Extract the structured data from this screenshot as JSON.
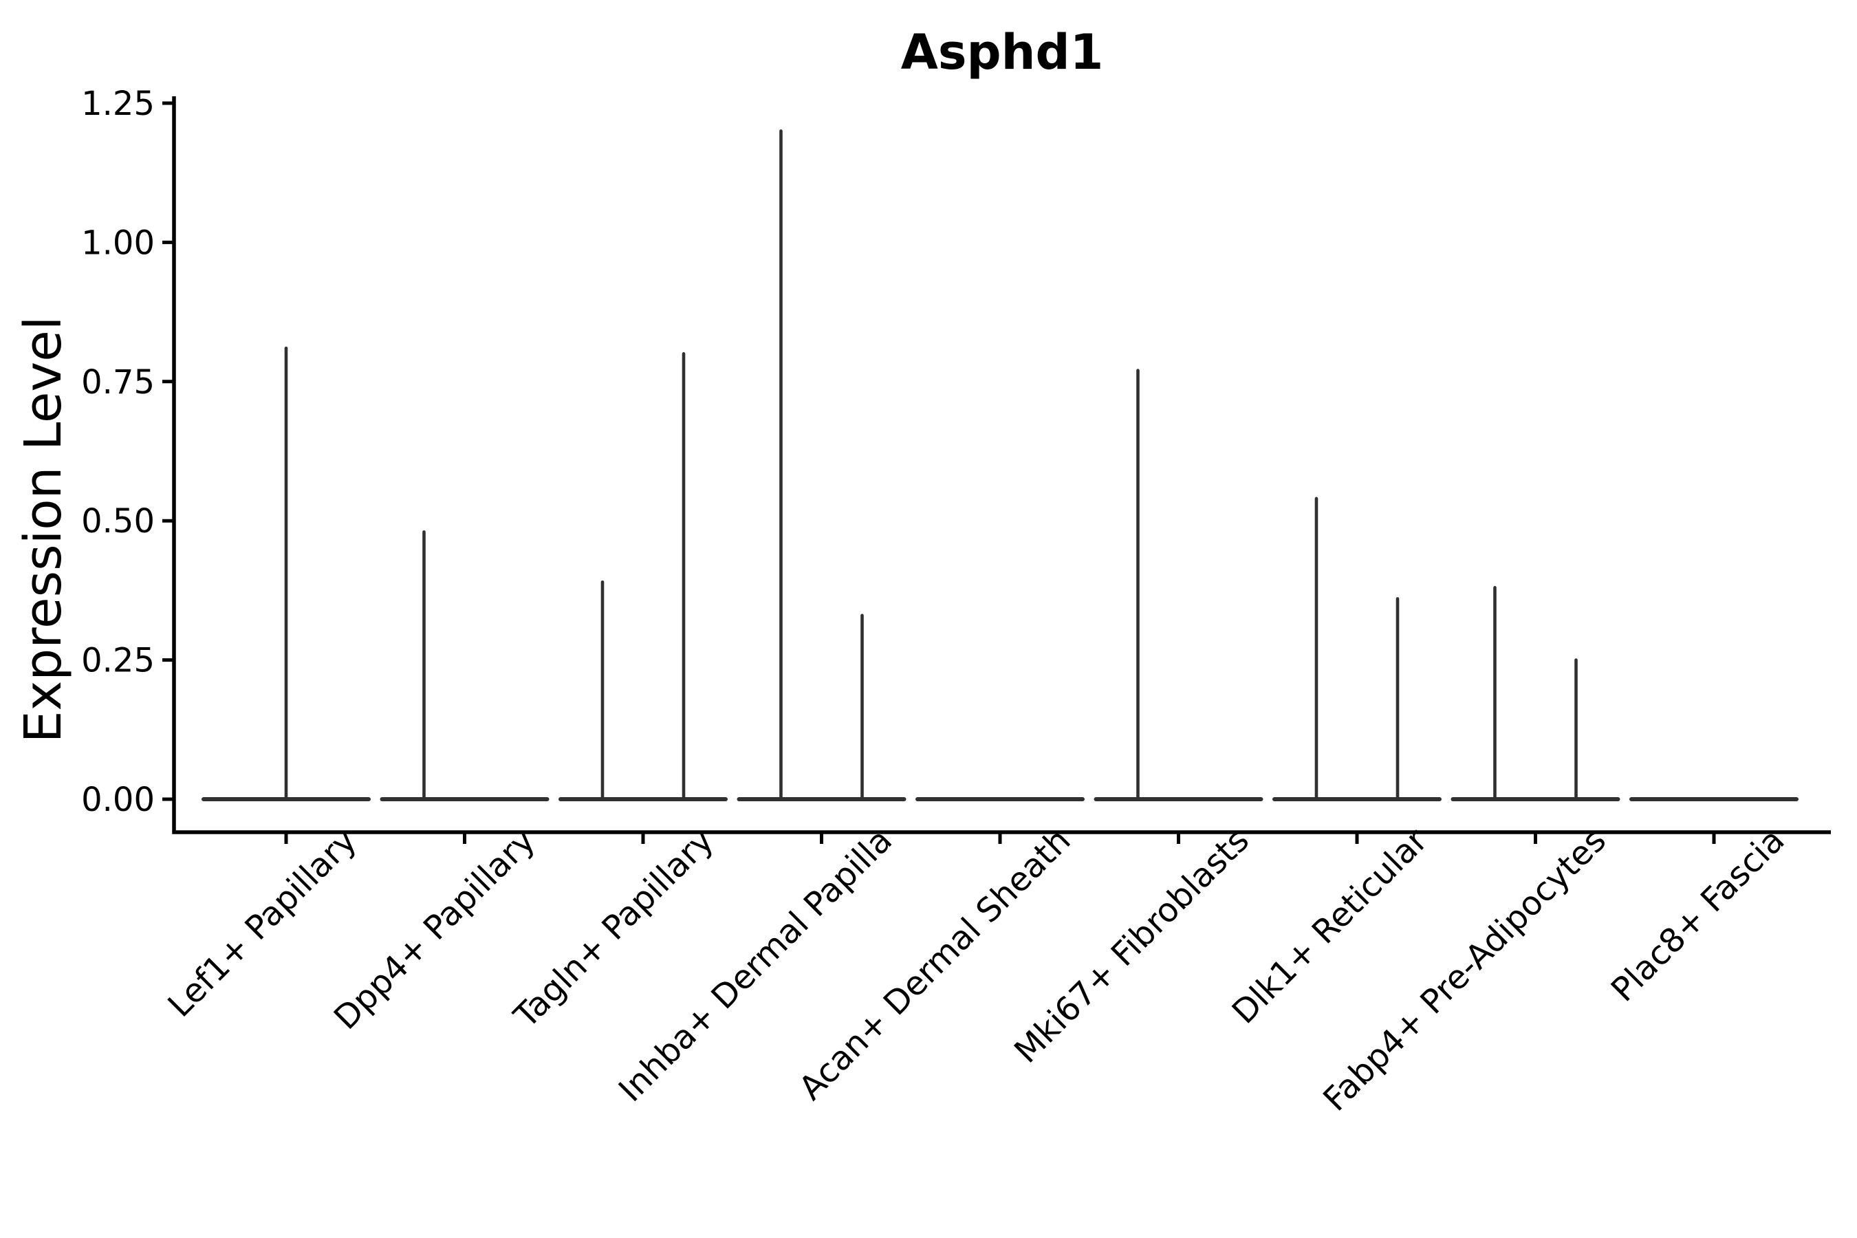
{
  "figure": {
    "background": "#ffffff"
  },
  "chart_data": {
    "type": "violin",
    "title": "Asphd1",
    "ylabel": "Expression Level",
    "xlabel": "",
    "grid": false,
    "legend": "none",
    "x_tick_rotation": 45,
    "ylim": [
      -0.06,
      1.26
    ],
    "yticks": [
      {
        "value": 0.0,
        "label": "0.00"
      },
      {
        "value": 0.25,
        "label": "0.25"
      },
      {
        "value": 0.5,
        "label": "0.50"
      },
      {
        "value": 0.75,
        "label": "0.75"
      },
      {
        "value": 1.0,
        "label": "1.00"
      },
      {
        "value": 1.25,
        "label": "1.25"
      }
    ],
    "categories": [
      "Lef1+ Papillary",
      "Dpp4+ Papillary",
      "Tagln+ Papillary",
      "Inhba+ Dermal Papilla",
      "Acan+ Dermal Sheath",
      "Mki67+ Fibroblasts",
      "Dlk1+ Reticular",
      "Fabp4+ Pre-Adipocytes",
      "Plac8+ Fascia"
    ],
    "violins": [
      {
        "category": "Lef1+ Papillary",
        "baseline": 0.0,
        "spikes": [
          {
            "position": "center",
            "offset": 0.0,
            "max": 0.81
          }
        ]
      },
      {
        "category": "Dpp4+ Papillary",
        "baseline": 0.0,
        "spikes": [
          {
            "position": "left",
            "offset": -0.2274,
            "max": 0.48
          }
        ]
      },
      {
        "category": "Tagln+ Papillary",
        "baseline": 0.0,
        "spikes": [
          {
            "position": "left",
            "offset": -0.2274,
            "max": 0.39
          },
          {
            "position": "right",
            "offset": 0.2274,
            "max": 0.8
          }
        ]
      },
      {
        "category": "Inhba+ Dermal Papilla",
        "baseline": 0.0,
        "spikes": [
          {
            "position": "left",
            "offset": -0.2274,
            "max": 1.2
          },
          {
            "position": "right",
            "offset": 0.2274,
            "max": 0.33
          }
        ]
      },
      {
        "category": "Acan+ Dermal Sheath",
        "baseline": 0.0,
        "spikes": []
      },
      {
        "category": "Mki67+ Fibroblasts",
        "baseline": 0.0,
        "spikes": [
          {
            "position": "left",
            "offset": -0.2274,
            "max": 0.77
          }
        ]
      },
      {
        "category": "Dlk1+ Reticular",
        "baseline": 0.0,
        "spikes": [
          {
            "position": "left",
            "offset": -0.2274,
            "max": 0.54
          },
          {
            "position": "right",
            "offset": 0.2274,
            "max": 0.36
          }
        ]
      },
      {
        "category": "Fabp4+ Pre-Adipocytes",
        "baseline": 0.0,
        "spikes": [
          {
            "position": "left",
            "offset": -0.2274,
            "max": 0.38
          },
          {
            "position": "right",
            "offset": 0.2274,
            "max": 0.25
          }
        ]
      },
      {
        "category": "Plac8+ Fascia",
        "baseline": 0.0,
        "spikes": []
      }
    ],
    "violin_half_width_frac": 0.4624,
    "colors": {
      "violin": "#303030",
      "axis": "#000000",
      "text": "#000000",
      "background": "#ffffff"
    }
  }
}
